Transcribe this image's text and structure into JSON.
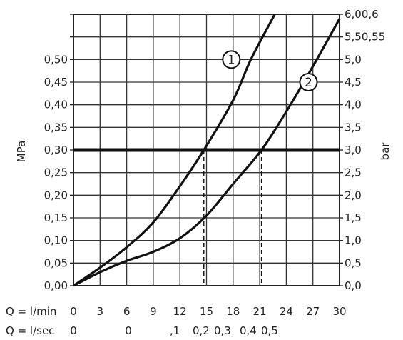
{
  "chart_data": {
    "type": "line",
    "title": "",
    "x_axis": {
      "label": "Q = l/min",
      "range": [
        0,
        30
      ],
      "ticks": [
        "0",
        "3",
        "6",
        "9",
        "12",
        "15",
        "18",
        "21",
        "24",
        "27",
        "30"
      ]
    },
    "x_axis_secondary": {
      "label": "Q = l/sec",
      "ticks": [
        "0",
        "0",
        ",1",
        "0,2",
        "0,3",
        "0,4",
        "0,5"
      ]
    },
    "y_axis_left": {
      "label": "MPa",
      "range": [
        0,
        0.6
      ],
      "ticks": [
        "0,00",
        "0,05",
        "0,10",
        "0,15",
        "0,20",
        "0,25",
        "0,30",
        "0,35",
        "0,40",
        "0,45",
        "0,50"
      ]
    },
    "y_axis_right": {
      "label": "bar",
      "range": [
        0,
        6
      ],
      "ticks": [
        "0,0",
        "0,5",
        "1,0",
        "1,5",
        "2,0",
        "2,5",
        "3,0",
        "3,5",
        "4,0",
        "4,5",
        "5,0",
        "5,50,55",
        "6,00,6"
      ]
    },
    "grid": true,
    "reference_line": {
      "y_bar": 3.0,
      "markers_x": [
        14.7,
        21.2
      ]
    },
    "series": [
      {
        "name": "1",
        "x": [
          0,
          3,
          6,
          9,
          12,
          14.7,
          18,
          20,
          22.7
        ],
        "y": [
          0,
          0.4,
          0.85,
          1.4,
          2.2,
          3.0,
          4.1,
          5.0,
          6.0
        ]
      },
      {
        "name": "2",
        "x": [
          0,
          3,
          6,
          9,
          12,
          15,
          18,
          21.2,
          24,
          27,
          30
        ],
        "y": [
          0,
          0.3,
          0.55,
          0.75,
          1.05,
          1.55,
          2.25,
          3.0,
          3.85,
          4.85,
          5.9
        ]
      }
    ]
  }
}
